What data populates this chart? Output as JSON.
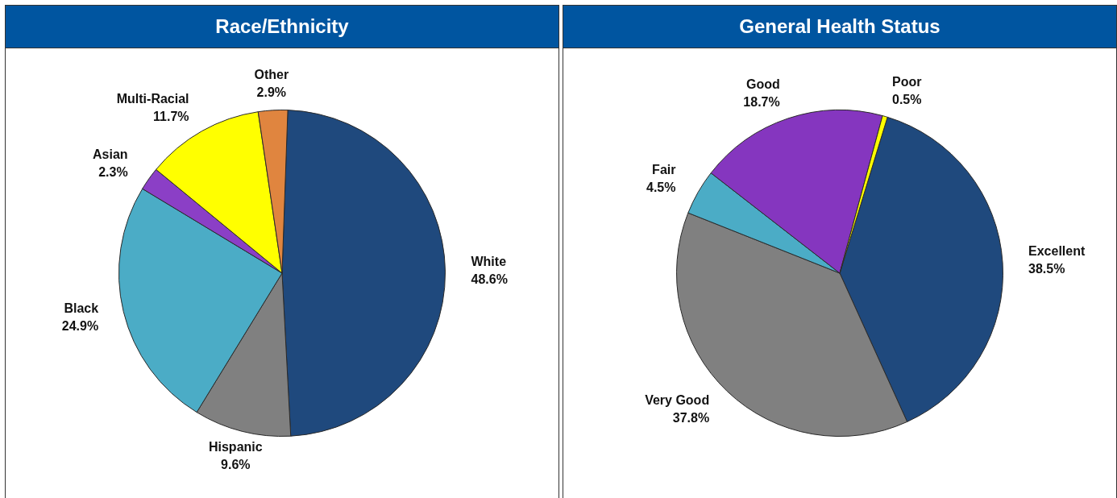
{
  "chart_data": [
    {
      "type": "pie",
      "title": "Race/Ethnicity",
      "categories": [
        "White",
        "Hispanic",
        "Black",
        "Asian",
        "Multi-Racial",
        "Other"
      ],
      "values": [
        48.6,
        9.6,
        24.9,
        2.3,
        11.7,
        2.9
      ],
      "colors": [
        "#1f497d",
        "#808080",
        "#4bacc6",
        "#8b3fc6",
        "#ffff00",
        "#e0853f"
      ],
      "value_labels": [
        "48.6%",
        "9.6%",
        "24.9%",
        "2.3%",
        "11.7%",
        "2.9%"
      ]
    },
    {
      "type": "pie",
      "title": "General Health Status",
      "categories": [
        "Excellent",
        "Very Good",
        "Fair",
        "Good",
        "Poor"
      ],
      "values": [
        38.5,
        37.8,
        4.5,
        18.7,
        0.5
      ],
      "colors": [
        "#1f497d",
        "#808080",
        "#4bacc6",
        "#8536bf",
        "#ffff00"
      ],
      "value_labels": [
        "38.5%",
        "37.8%",
        "4.5%",
        "18.7%",
        "0.5%"
      ]
    }
  ]
}
